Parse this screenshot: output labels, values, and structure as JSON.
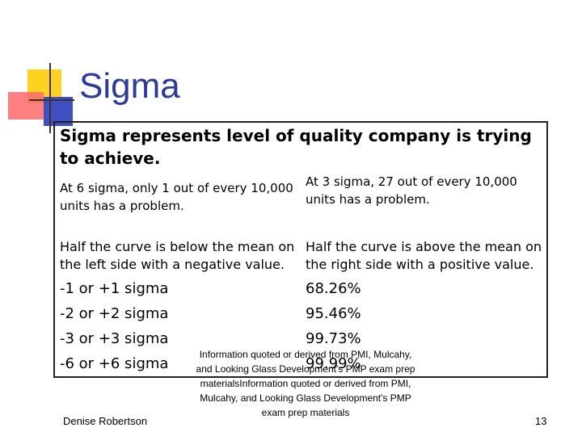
{
  "title": "Sigma",
  "table": {
    "header": "Sigma represents level of quality company is trying to achieve.",
    "rows": [
      [
        "At 6 sigma, only 1 out of every 10,000 units has a problem.",
        "At 3 sigma, 27 out of every 10,000 units has a problem."
      ],
      [
        "Half the curve is below the mean on the left side with a negative value.",
        "Half the curve is above the mean on the right side with a positive value."
      ],
      [
        "-1 or +1 sigma",
        "68.26%"
      ],
      [
        "-2 or +2 sigma",
        "95.46%"
      ],
      [
        "-3 or +3 sigma",
        "99.73%"
      ],
      [
        "-6 or +6 sigma",
        "99.99%"
      ]
    ]
  },
  "footer": {
    "author": "Denise Robertson",
    "source": "Information quoted or derived from PMI, Mulcahy, and Looking Glass Development's PMP exam prep materialsInformation quoted or derived from PMI, Mulcahy, and Looking Glass Development's PMP exam prep materials",
    "page_number": 13
  }
}
